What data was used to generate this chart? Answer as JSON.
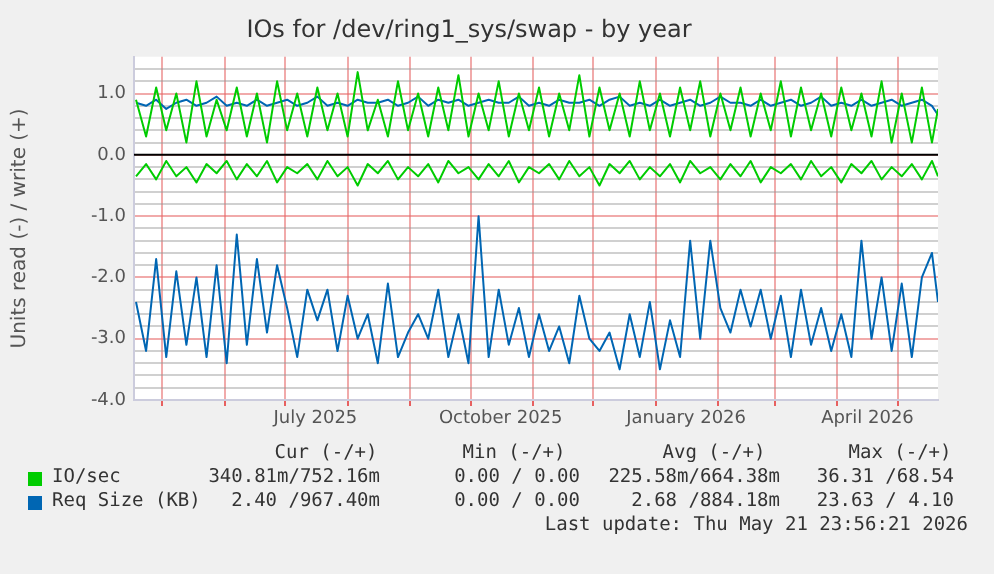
{
  "chart_data": {
    "type": "line",
    "title": "IOs for /dev/ring1_sys/swap - by year",
    "ylabel": "Units read (-) / write (+)",
    "x": [
      "2025-04-18",
      "2025-04-23",
      "2025-04-28",
      "2025-05-03",
      "2025-05-08",
      "2025-05-13",
      "2025-05-18",
      "2025-05-23",
      "2025-05-28",
      "2025-06-02",
      "2025-06-07",
      "2025-06-12",
      "2025-06-17",
      "2025-06-22",
      "2025-06-27",
      "2025-07-02",
      "2025-07-07",
      "2025-07-12",
      "2025-07-17",
      "2025-07-22",
      "2025-07-27",
      "2025-08-01",
      "2025-08-06",
      "2025-08-11",
      "2025-08-16",
      "2025-08-21",
      "2025-08-26",
      "2025-08-31",
      "2025-09-05",
      "2025-09-10",
      "2025-09-15",
      "2025-09-20",
      "2025-09-25",
      "2025-09-30",
      "2025-10-05",
      "2025-10-10",
      "2025-10-15",
      "2025-10-20",
      "2025-10-25",
      "2025-10-30",
      "2025-11-04",
      "2025-11-09",
      "2025-11-14",
      "2025-11-19",
      "2025-11-24",
      "2025-11-29",
      "2025-12-04",
      "2025-12-09",
      "2025-12-14",
      "2025-12-19",
      "2025-12-24",
      "2025-12-29",
      "2026-01-03",
      "2026-01-08",
      "2026-01-13",
      "2026-01-18",
      "2026-01-23",
      "2026-01-28",
      "2026-02-02",
      "2026-02-07",
      "2026-02-12",
      "2026-02-17",
      "2026-02-22",
      "2026-02-27",
      "2026-03-04",
      "2026-03-09",
      "2026-03-14",
      "2026-03-19",
      "2026-03-24",
      "2026-03-29",
      "2026-04-03",
      "2026-04-08",
      "2026-04-13",
      "2026-04-18",
      "2026-04-23",
      "2026-04-28",
      "2026-05-03",
      "2026-05-08",
      "2026-05-13",
      "2026-05-18",
      "2026-05-21"
    ],
    "series": [
      {
        "name": "IO/sec",
        "color": "#00cc00",
        "values": [
          0.9,
          0.3,
          1.1,
          0.4,
          1.0,
          0.2,
          1.2,
          0.3,
          0.9,
          0.4,
          1.1,
          0.3,
          1.0,
          0.2,
          1.2,
          0.4,
          1.0,
          0.3,
          1.1,
          0.4,
          1.0,
          0.3,
          1.35,
          0.4,
          0.9,
          0.3,
          1.2,
          0.4,
          1.0,
          0.3,
          1.1,
          0.4,
          1.3,
          0.3,
          1.0,
          0.4,
          1.2,
          0.3,
          1.0,
          0.4,
          1.1,
          0.3,
          1.0,
          0.4,
          1.3,
          0.3,
          1.1,
          0.4,
          1.0,
          0.3,
          1.2,
          0.4,
          1.0,
          0.3,
          1.1,
          0.4,
          1.2,
          0.3,
          1.0,
          0.4,
          1.1,
          0.3,
          1.0,
          0.4,
          1.2,
          0.3,
          1.1,
          0.4,
          1.0,
          0.3,
          1.1,
          0.4,
          1.0,
          0.3,
          1.2,
          0.2,
          1.0,
          0.2,
          1.1,
          0.2,
          0.75
        ]
      },
      {
        "color": "#00cc00",
        "values": [
          -0.35,
          -0.15,
          -0.4,
          -0.1,
          -0.35,
          -0.2,
          -0.45,
          -0.15,
          -0.3,
          -0.1,
          -0.4,
          -0.15,
          -0.35,
          -0.1,
          -0.45,
          -0.2,
          -0.3,
          -0.15,
          -0.4,
          -0.1,
          -0.35,
          -0.2,
          -0.5,
          -0.15,
          -0.3,
          -0.1,
          -0.4,
          -0.2,
          -0.35,
          -0.15,
          -0.45,
          -0.1,
          -0.3,
          -0.2,
          -0.4,
          -0.15,
          -0.35,
          -0.1,
          -0.45,
          -0.2,
          -0.3,
          -0.15,
          -0.4,
          -0.1,
          -0.35,
          -0.2,
          -0.5,
          -0.15,
          -0.3,
          -0.1,
          -0.4,
          -0.2,
          -0.35,
          -0.15,
          -0.45,
          -0.1,
          -0.3,
          -0.2,
          -0.4,
          -0.15,
          -0.35,
          -0.1,
          -0.45,
          -0.2,
          -0.3,
          -0.15,
          -0.4,
          -0.1,
          -0.35,
          -0.2,
          -0.45,
          -0.15,
          -0.3,
          -0.1,
          -0.4,
          -0.2,
          -0.35,
          -0.15,
          -0.4,
          -0.1,
          -0.35
        ]
      },
      {
        "name": "Req Size (KB)",
        "color": "#0066b3",
        "values": [
          0.85,
          0.8,
          0.9,
          0.75,
          0.85,
          0.9,
          0.8,
          0.85,
          0.95,
          0.8,
          0.85,
          0.8,
          0.9,
          0.8,
          0.85,
          0.9,
          0.8,
          0.85,
          0.95,
          0.8,
          0.85,
          0.8,
          0.9,
          0.85,
          0.85,
          0.9,
          0.8,
          0.85,
          0.95,
          0.8,
          0.9,
          0.85,
          0.9,
          0.8,
          0.85,
          0.9,
          0.85,
          0.85,
          0.95,
          0.8,
          0.85,
          0.8,
          0.9,
          0.85,
          0.85,
          0.9,
          0.8,
          0.9,
          0.95,
          0.8,
          0.85,
          0.8,
          0.9,
          0.8,
          0.85,
          0.9,
          0.8,
          0.85,
          0.95,
          0.85,
          0.85,
          0.8,
          0.9,
          0.8,
          0.85,
          0.9,
          0.8,
          0.85,
          0.95,
          0.8,
          0.85,
          0.8,
          0.9,
          0.8,
          0.85,
          0.9,
          0.8,
          0.85,
          0.9,
          0.8,
          0.65
        ]
      },
      {
        "color": "#0066b3",
        "values": [
          -2.4,
          -3.2,
          -1.7,
          -3.3,
          -1.9,
          -3.1,
          -2.0,
          -3.3,
          -1.8,
          -3.4,
          -1.3,
          -3.1,
          -1.7,
          -2.9,
          -1.8,
          -2.5,
          -3.3,
          -2.2,
          -2.7,
          -2.2,
          -3.2,
          -2.3,
          -3.0,
          -2.6,
          -3.4,
          -2.1,
          -3.3,
          -2.9,
          -2.6,
          -3.0,
          -2.2,
          -3.3,
          -2.6,
          -3.4,
          -1.0,
          -3.3,
          -2.2,
          -3.1,
          -2.5,
          -3.3,
          -2.6,
          -3.2,
          -2.8,
          -3.4,
          -2.3,
          -3.0,
          -3.2,
          -2.9,
          -3.5,
          -2.6,
          -3.3,
          -2.4,
          -3.5,
          -2.7,
          -3.3,
          -1.4,
          -3.0,
          -1.4,
          -2.5,
          -2.9,
          -2.2,
          -2.8,
          -2.2,
          -3.0,
          -2.3,
          -3.3,
          -2.2,
          -3.1,
          -2.5,
          -3.2,
          -2.6,
          -3.3,
          -1.4,
          -3.0,
          -2.0,
          -3.2,
          -2.1,
          -3.3,
          -2.0,
          -1.6,
          -2.4
        ]
      }
    ],
    "xlim": [
      "2025-04-17",
      "2026-05-21"
    ],
    "xticks": [
      {
        "value": "2025-05-01",
        "label": null
      },
      {
        "value": "2025-06-01",
        "label": null
      },
      {
        "value": "2025-07-01",
        "label": null
      },
      {
        "value": "2025-07-16",
        "label": "July 2025"
      },
      {
        "value": "2025-08-01",
        "label": null
      },
      {
        "value": "2025-09-01",
        "label": null
      },
      {
        "value": "2025-10-01",
        "label": null
      },
      {
        "value": "2025-10-16",
        "label": "October 2025"
      },
      {
        "value": "2025-11-01",
        "label": null
      },
      {
        "value": "2025-12-01",
        "label": null
      },
      {
        "value": "2026-01-01",
        "label": null
      },
      {
        "value": "2026-01-16",
        "label": "January 2026"
      },
      {
        "value": "2026-02-01",
        "label": null
      },
      {
        "value": "2026-03-01",
        "label": null
      },
      {
        "value": "2026-04-01",
        "label": null
      },
      {
        "value": "2026-04-16",
        "label": "April 2026"
      },
      {
        "value": "2026-05-01",
        "label": null
      }
    ],
    "ylim": [
      -4,
      1.6
    ],
    "yticks": [
      {
        "value": -4,
        "label": "-4.0"
      },
      {
        "value": -3.8,
        "label": null
      },
      {
        "value": -3.6,
        "label": null
      },
      {
        "value": -3.4,
        "label": null
      },
      {
        "value": -3.2,
        "label": null
      },
      {
        "value": -3,
        "label": "-3.0"
      },
      {
        "value": -2.8,
        "label": null
      },
      {
        "value": -2.6,
        "label": null
      },
      {
        "value": -2.4,
        "label": null
      },
      {
        "value": -2.2,
        "label": null
      },
      {
        "value": -2,
        "label": "-2.0"
      },
      {
        "value": -1.8,
        "label": null
      },
      {
        "value": -1.6,
        "label": null
      },
      {
        "value": -1.4,
        "label": null
      },
      {
        "value": -1.2,
        "label": null
      },
      {
        "value": -1,
        "label": "-1.0"
      },
      {
        "value": -0.8,
        "label": null
      },
      {
        "value": -0.6,
        "label": null
      },
      {
        "value": -0.4,
        "label": null
      },
      {
        "value": -0.2,
        "label": null
      },
      {
        "value": 0,
        "label": "0.0"
      },
      {
        "value": 0.2,
        "label": null
      },
      {
        "value": 0.4,
        "label": null
      },
      {
        "value": 0.6,
        "label": null
      },
      {
        "value": 0.8,
        "label": null
      },
      {
        "value": 1,
        "label": "1.0"
      },
      {
        "value": 1.2,
        "label": null
      },
      {
        "value": 1.4,
        "label": null
      }
    ],
    "ref_lines": [
      {
        "axis": "y",
        "value": 0,
        "color": "#000000"
      }
    ],
    "grid": true,
    "legend": "bottom",
    "marker": "none",
    "line_style": "solid",
    "annotations": [
      "Cur (-/+)",
      "Min (-/+)",
      "Avg (-/+)",
      "Max (-/+)",
      "340.81m/752.16m",
      "0.00 / 0.00",
      "225.58m/664.38m",
      "36.31 /68.54",
      "2.40 /967.40m",
      "0.00 / 0.00",
      "2.68 /884.18m",
      "23.63 / 4.10",
      "Last update: Thu May 21 23:56:21 2026"
    ]
  }
}
